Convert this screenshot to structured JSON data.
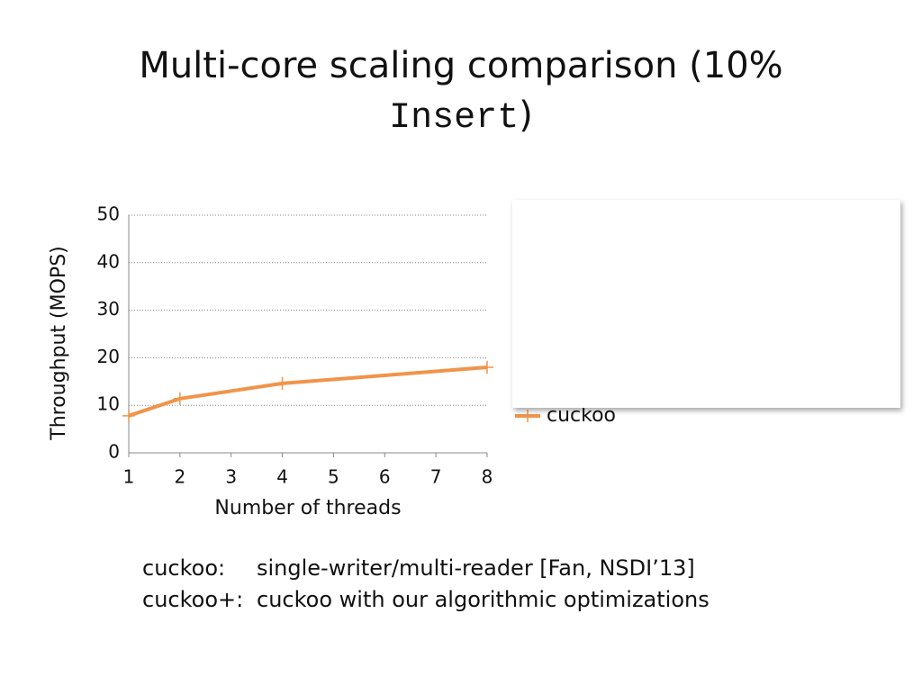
{
  "slide": {
    "title": [
      "Multi-core scaling comparison (10%",
      "Insert",
      ")"
    ],
    "notes": [
      [
        "cuckoo:",
        "single-writer/multi-reader [Fan, NSDI’13]"
      ],
      [
        "cuckoo+:",
        "cuckoo with our algorithmic optimizations"
      ]
    ]
  },
  "chart_data": {
    "type": "line",
    "x_label": "Number of threads",
    "y_label": "Throughput (MOPS)",
    "series": [
      {
        "name": "cuckoo",
        "color": "#f0944a",
        "x": [
          1,
          2,
          4,
          8
        ],
        "values": [
          7.8,
          11.4,
          14.6,
          18.0
        ]
      }
    ],
    "xlim": [
      1,
      8
    ],
    "xticks": [
      1,
      2,
      3,
      4,
      5,
      6,
      7,
      8
    ],
    "ylim": [
      0,
      50
    ],
    "yticks": [
      0,
      10,
      20,
      30,
      40,
      50
    ],
    "grid": true,
    "legend": "right"
  }
}
